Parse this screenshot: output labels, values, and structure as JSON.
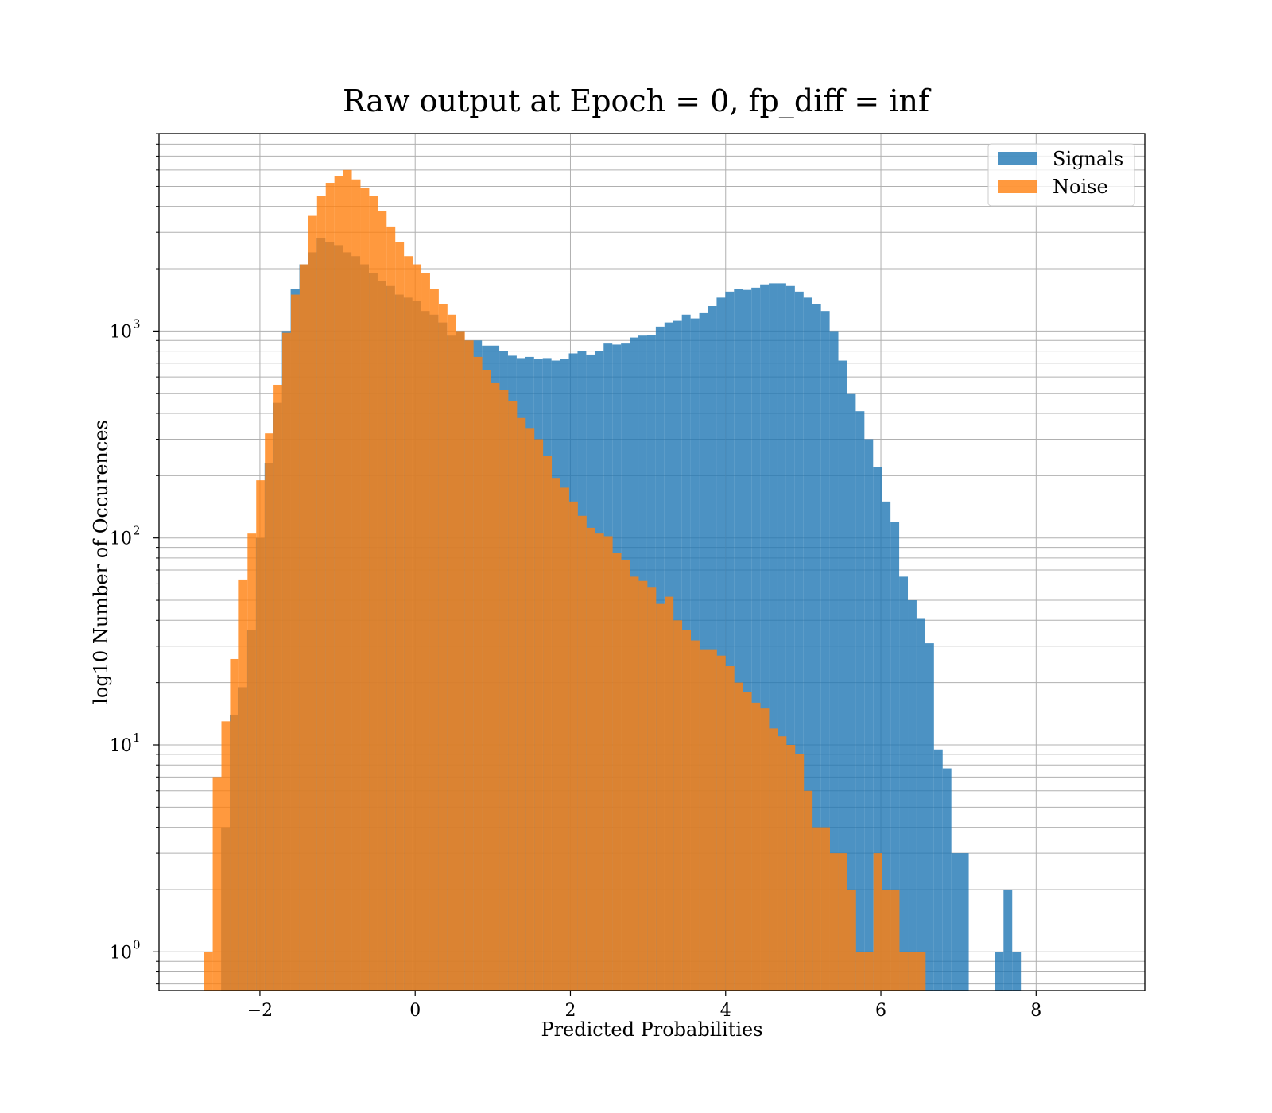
{
  "chart_data": {
    "type": "bar",
    "title": "Raw output at Epoch = 0, fp_diff = inf",
    "xlabel": "Predicted Probabilities",
    "ylabel": "log10 Number of Occurences",
    "xlim": [
      -3.3,
      9.4
    ],
    "ylim": [
      0.65,
      9000
    ],
    "yscale": "log",
    "grid": true,
    "legend_position": "upper right",
    "x_ticks": [
      -2,
      0,
      2,
      4,
      6,
      8
    ],
    "x_tick_labels": [
      "−2",
      "0",
      "2",
      "4",
      "6",
      "8"
    ],
    "y_ticks": [
      {
        "value": 1,
        "base": "10",
        "exp": "0"
      },
      {
        "value": 10,
        "base": "10",
        "exp": "1"
      },
      {
        "value": 100,
        "base": "10",
        "exp": "2"
      },
      {
        "value": 1000,
        "base": "10",
        "exp": "3"
      }
    ],
    "series": [
      {
        "name": "Signals",
        "color": "#1f77b4",
        "opacity": 0.8,
        "bin_start": -2.5,
        "bin_width": 0.112,
        "values": [
          4,
          14,
          19,
          36,
          100,
          230,
          450,
          1000,
          1600,
          2100,
          2400,
          2800,
          2700,
          2600,
          2400,
          2300,
          2100,
          1900,
          1750,
          1650,
          1500,
          1450,
          1400,
          1250,
          1200,
          1100,
          950,
          1000,
          900,
          900,
          850,
          850,
          800,
          760,
          740,
          750,
          730,
          740,
          720,
          730,
          780,
          800,
          770,
          800,
          870,
          860,
          870,
          930,
          950,
          960,
          1050,
          1100,
          1120,
          1200,
          1150,
          1220,
          1320,
          1450,
          1550,
          1600,
          1580,
          1620,
          1680,
          1700,
          1700,
          1650,
          1550,
          1450,
          1350,
          1250,
          1000,
          720,
          500,
          410,
          300,
          220,
          150,
          120,
          65,
          50,
          41,
          31,
          9.5,
          7.7,
          3,
          3,
          0,
          0,
          0,
          1,
          2,
          1
        ]
      },
      {
        "name": "Noise",
        "color": "#ff7f0e",
        "opacity": 0.8,
        "bin_start": -2.72,
        "bin_width": 0.112,
        "values": [
          1,
          7,
          13,
          26,
          63,
          105,
          190,
          320,
          550,
          980,
          1500,
          2100,
          3600,
          4500,
          5200,
          5600,
          6000,
          5400,
          4900,
          4500,
          3800,
          3200,
          2700,
          2300,
          2100,
          1900,
          1600,
          1350,
          1200,
          1000,
          900,
          750,
          650,
          560,
          520,
          460,
          380,
          340,
          300,
          250,
          195,
          175,
          150,
          128,
          112,
          105,
          102,
          85,
          78,
          65,
          62,
          58,
          48,
          52,
          40,
          36,
          32,
          29,
          29,
          27,
          24,
          20,
          18,
          16,
          15,
          12,
          11,
          10,
          9,
          6,
          4,
          4,
          3,
          3,
          2,
          1,
          1,
          3,
          2,
          2,
          1,
          1,
          1
        ]
      }
    ]
  }
}
